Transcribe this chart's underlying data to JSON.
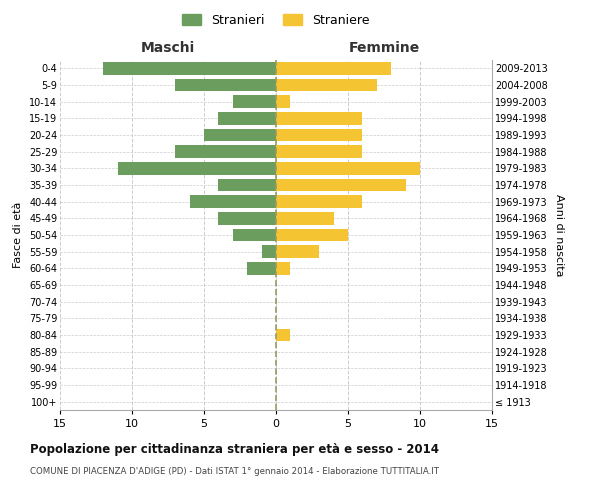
{
  "age_groups": [
    "100+",
    "95-99",
    "90-94",
    "85-89",
    "80-84",
    "75-79",
    "70-74",
    "65-69",
    "60-64",
    "55-59",
    "50-54",
    "45-49",
    "40-44",
    "35-39",
    "30-34",
    "25-29",
    "20-24",
    "15-19",
    "10-14",
    "5-9",
    "0-4"
  ],
  "birth_years": [
    "≤ 1913",
    "1914-1918",
    "1919-1923",
    "1924-1928",
    "1929-1933",
    "1934-1938",
    "1939-1943",
    "1944-1948",
    "1949-1953",
    "1954-1958",
    "1959-1963",
    "1964-1968",
    "1969-1973",
    "1974-1978",
    "1979-1983",
    "1984-1988",
    "1989-1993",
    "1994-1998",
    "1999-2003",
    "2004-2008",
    "2009-2013"
  ],
  "maschi": [
    0,
    0,
    0,
    0,
    0,
    0,
    0,
    0,
    2,
    1,
    3,
    4,
    6,
    4,
    11,
    7,
    5,
    4,
    3,
    7,
    12
  ],
  "femmine": [
    0,
    0,
    0,
    0,
    1,
    0,
    0,
    0,
    1,
    3,
    5,
    4,
    6,
    9,
    10,
    6,
    6,
    6,
    1,
    7,
    8
  ],
  "maschi_color": "#6b9e5e",
  "femmine_color": "#f5c432",
  "background_color": "#ffffff",
  "grid_color": "#cccccc",
  "title": "Popolazione per cittadinanza straniera per età e sesso - 2014",
  "subtitle": "COMUNE DI PIACENZA D'ADIGE (PD) - Dati ISTAT 1° gennaio 2014 - Elaborazione TUTTITALIA.IT",
  "xlabel_left": "Maschi",
  "xlabel_right": "Femmine",
  "ylabel_left": "Fasce di età",
  "ylabel_right": "Anni di nascita",
  "xlim": 15,
  "legend_stranieri": "Stranieri",
  "legend_straniere": "Straniere"
}
